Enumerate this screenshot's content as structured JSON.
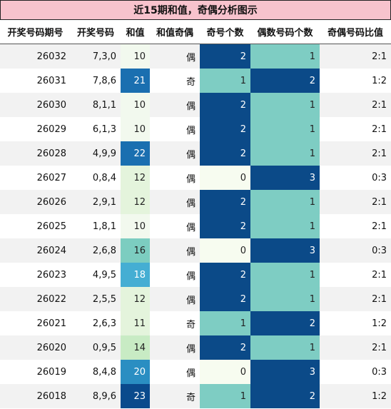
{
  "title": "近15期和值，奇偶分析图示",
  "headers": [
    "开奖号码期号",
    "开奖号码",
    "和值",
    "和值奇偶",
    "奇号个数",
    "偶数号码个数",
    "奇偶号码比值"
  ],
  "colors": {
    "title_bg": "#f7c3cd",
    "sum_scale": [
      "#f2f9ee",
      "#e4f4dc",
      "#c8ebc4",
      "#7ccdc0",
      "#45aed3",
      "#2a8ec2",
      "#1a6fb0",
      "#0a4a8c"
    ],
    "count_scale": [
      "#f7fcf0",
      "#7ecdc3",
      "#0b4a88"
    ]
  },
  "chart_data": {
    "type": "table",
    "columns": [
      "开奖号码期号",
      "开奖号码",
      "和值",
      "和值奇偶",
      "奇号个数",
      "偶数号码个数",
      "奇偶号码比值"
    ],
    "rows": [
      {
        "issue": "26032",
        "numbers": "7,3,0",
        "sum": 10,
        "parity": "偶",
        "odd": 2,
        "even": 1,
        "ratio": "2:1"
      },
      {
        "issue": "26031",
        "numbers": "7,8,6",
        "sum": 21,
        "parity": "奇",
        "odd": 1,
        "even": 2,
        "ratio": "1:2"
      },
      {
        "issue": "26030",
        "numbers": "8,1,1",
        "sum": 10,
        "parity": "偶",
        "odd": 2,
        "even": 1,
        "ratio": "2:1"
      },
      {
        "issue": "26029",
        "numbers": "6,1,3",
        "sum": 10,
        "parity": "偶",
        "odd": 2,
        "even": 1,
        "ratio": "2:1"
      },
      {
        "issue": "26028",
        "numbers": "4,9,9",
        "sum": 22,
        "parity": "偶",
        "odd": 2,
        "even": 1,
        "ratio": "2:1"
      },
      {
        "issue": "26027",
        "numbers": "0,8,4",
        "sum": 12,
        "parity": "偶",
        "odd": 0,
        "even": 3,
        "ratio": "0:3"
      },
      {
        "issue": "26026",
        "numbers": "2,9,1",
        "sum": 12,
        "parity": "偶",
        "odd": 2,
        "even": 1,
        "ratio": "2:1"
      },
      {
        "issue": "26025",
        "numbers": "1,8,1",
        "sum": 10,
        "parity": "偶",
        "odd": 2,
        "even": 1,
        "ratio": "2:1"
      },
      {
        "issue": "26024",
        "numbers": "2,6,8",
        "sum": 16,
        "parity": "偶",
        "odd": 0,
        "even": 3,
        "ratio": "0:3"
      },
      {
        "issue": "26023",
        "numbers": "4,9,5",
        "sum": 18,
        "parity": "偶",
        "odd": 2,
        "even": 1,
        "ratio": "2:1"
      },
      {
        "issue": "26022",
        "numbers": "2,5,5",
        "sum": 12,
        "parity": "偶",
        "odd": 2,
        "even": 1,
        "ratio": "2:1"
      },
      {
        "issue": "26021",
        "numbers": "2,6,3",
        "sum": 11,
        "parity": "奇",
        "odd": 1,
        "even": 2,
        "ratio": "1:2"
      },
      {
        "issue": "26020",
        "numbers": "0,9,5",
        "sum": 14,
        "parity": "偶",
        "odd": 2,
        "even": 1,
        "ratio": "2:1"
      },
      {
        "issue": "26019",
        "numbers": "8,4,8",
        "sum": 20,
        "parity": "偶",
        "odd": 0,
        "even": 3,
        "ratio": "0:3"
      },
      {
        "issue": "26018",
        "numbers": "8,9,6",
        "sum": 23,
        "parity": "奇",
        "odd": 1,
        "even": 2,
        "ratio": "1:2"
      }
    ]
  }
}
